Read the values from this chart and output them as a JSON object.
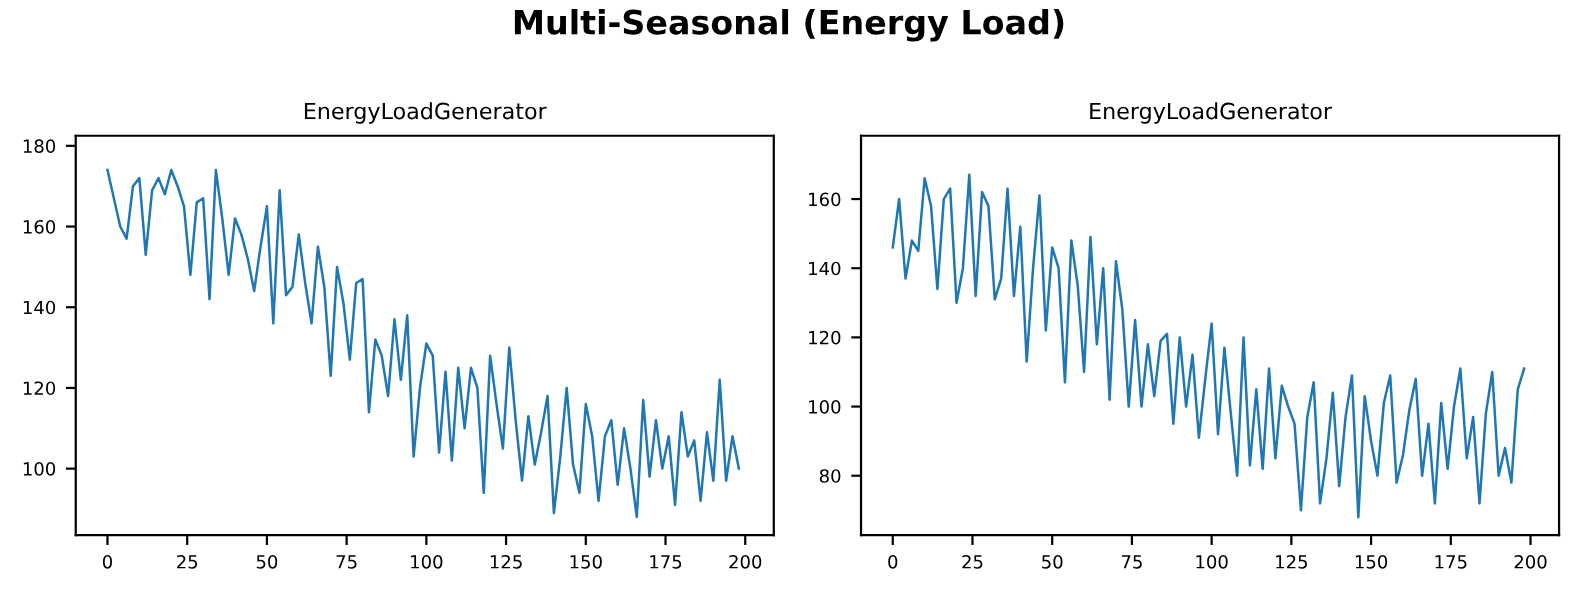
{
  "chart_data": [
    {
      "type": "line",
      "title": "EnergyLoadGenerator",
      "annotations": [
        "Multi-Seasonal (Energy Load)"
      ],
      "x": [
        0,
        2,
        4,
        6,
        8,
        10,
        12,
        14,
        16,
        18,
        20,
        22,
        24,
        26,
        28,
        30,
        32,
        34,
        36,
        38,
        40,
        42,
        44,
        46,
        48,
        50,
        52,
        54,
        56,
        58,
        60,
        62,
        64,
        66,
        68,
        70,
        72,
        74,
        76,
        78,
        80,
        82,
        84,
        86,
        88,
        90,
        92,
        94,
        96,
        98,
        100,
        102,
        104,
        106,
        108,
        110,
        112,
        114,
        116,
        118,
        120,
        122,
        124,
        126,
        128,
        130,
        132,
        134,
        136,
        138,
        140,
        142,
        144,
        146,
        148,
        150,
        152,
        154,
        156,
        158,
        160,
        162,
        164,
        166,
        168,
        170,
        172,
        174,
        176,
        178,
        180,
        182,
        184,
        186,
        188,
        190,
        192,
        194,
        196,
        198
      ],
      "series": [
        {
          "color": "#1f77b4",
          "values": [
            174,
            167,
            160,
            157,
            170,
            172,
            153,
            169,
            172,
            168,
            174,
            170,
            165,
            148,
            166,
            167,
            142,
            174,
            162,
            148,
            162,
            158,
            152,
            144,
            155,
            165,
            136,
            169,
            143,
            145,
            158,
            146,
            136,
            155,
            145,
            123,
            150,
            141,
            127,
            146,
            147,
            114,
            132,
            128,
            118,
            137,
            122,
            138,
            103,
            120,
            131,
            128,
            104,
            124,
            102,
            125,
            110,
            125,
            120,
            94,
            128,
            116,
            105,
            130,
            112,
            97,
            113,
            101,
            109,
            118,
            89,
            103,
            120,
            101,
            94,
            116,
            108,
            92,
            108,
            112,
            96,
            110,
            100,
            88,
            117,
            98,
            112,
            100,
            108,
            91,
            114,
            103,
            107,
            92,
            109,
            97,
            122,
            97,
            108,
            100
          ]
        }
      ],
      "xlim": [
        -9.95,
        208.95
      ],
      "ylim": [
        83.5,
        182.5
      ],
      "xticks": [
        0,
        25,
        50,
        75,
        100,
        125,
        150,
        175,
        200
      ],
      "yticks": [
        100,
        120,
        140,
        160,
        180
      ],
      "grid": false,
      "legend": false
    },
    {
      "type": "line",
      "title": "EnergyLoadGenerator",
      "x": [
        0,
        2,
        4,
        6,
        8,
        10,
        12,
        14,
        16,
        18,
        20,
        22,
        24,
        26,
        28,
        30,
        32,
        34,
        36,
        38,
        40,
        42,
        44,
        46,
        48,
        50,
        52,
        54,
        56,
        58,
        60,
        62,
        64,
        66,
        68,
        70,
        72,
        74,
        76,
        78,
        80,
        82,
        84,
        86,
        88,
        90,
        92,
        94,
        96,
        98,
        100,
        102,
        104,
        106,
        108,
        110,
        112,
        114,
        116,
        118,
        120,
        122,
        124,
        126,
        128,
        130,
        132,
        134,
        136,
        138,
        140,
        142,
        144,
        146,
        148,
        150,
        152,
        154,
        156,
        158,
        160,
        162,
        164,
        166,
        168,
        170,
        172,
        174,
        176,
        178,
        180,
        182,
        184,
        186,
        188,
        190,
        192,
        194,
        196,
        198
      ],
      "series": [
        {
          "color": "#1f77b4",
          "values": [
            146,
            160,
            137,
            148,
            145,
            166,
            158,
            134,
            160,
            163,
            130,
            140,
            167,
            132,
            162,
            158,
            131,
            137,
            163,
            132,
            152,
            113,
            140,
            161,
            122,
            146,
            140,
            107,
            148,
            135,
            110,
            149,
            118,
            140,
            102,
            142,
            128,
            100,
            125,
            100,
            118,
            103,
            119,
            121,
            95,
            120,
            100,
            115,
            91,
            108,
            124,
            92,
            117,
            98,
            80,
            120,
            83,
            105,
            82,
            111,
            85,
            106,
            100,
            95,
            70,
            97,
            107,
            72,
            85,
            104,
            77,
            97,
            109,
            68,
            103,
            90,
            80,
            101,
            109,
            78,
            86,
            99,
            108,
            80,
            95,
            72,
            101,
            82,
            100,
            111,
            85,
            97,
            72,
            98,
            110,
            80,
            88,
            78,
            105,
            111
          ]
        }
      ],
      "xlim": [
        -9.95,
        208.95
      ],
      "ylim": [
        62.8,
        178.3
      ],
      "xticks": [
        0,
        25,
        50,
        75,
        100,
        125,
        150,
        175,
        200
      ],
      "yticks": [
        80,
        100,
        120,
        140,
        160
      ],
      "grid": false,
      "legend": false
    }
  ]
}
